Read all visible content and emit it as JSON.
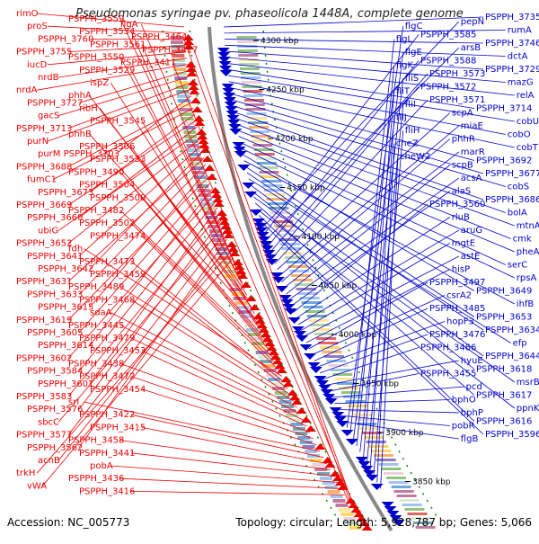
{
  "title": "Pseudomonas syringae pv. phaseolicola 1448A, complete genome",
  "accession": "Accession: NC_005773",
  "topology": "Topology: circular; Length: 5,928,787 bp; Genes: 5,066",
  "colors": {
    "forward": "#ee0000",
    "reverse": "#0000cc",
    "backbone": "#888888",
    "tick": "#008800"
  },
  "scale_labels": [
    "4300 kbp",
    "4250 kbp",
    "4200 kbp",
    "4150 kbp",
    "4100 kbp",
    "4050 kbp",
    "4000 kbp",
    "3950 kbp",
    "3900 kbp",
    "3850 kbp"
  ],
  "left_labels": [
    "rimO",
    "proS",
    "PSPPH_3760",
    "PSPPH_3755",
    "iucD",
    "nrdB",
    "nrdA",
    "PSPPH_3727",
    "gacS",
    "PSPPH_3713",
    "purN",
    "purM PSPPH_3703",
    "PSPPH_3688",
    "fumC1",
    "PSPPH_3673",
    "PSPPH_3669",
    "PSPPH_3660",
    "ubiG",
    "PSPPH_3652",
    "PSPPH_3641",
    "PSPPH_3642",
    "PSPPH_3631",
    "PSPPH_3633",
    "PSPPH_3615",
    "PSPPH_3619",
    "PSPPH_3605",
    "PSPPH_3614",
    "PSPPH_3602",
    "PSPPH_3584",
    "PSPPH_3601",
    "PSPPH_3583",
    "PSPPH_3576",
    "sbcC",
    "PSPPH_3577",
    "PSPPH_3562",
    "acnB",
    "trkH",
    "vWA",
    "PSPPH_3559",
    "PSPPH_3534",
    "PSPPH_3561",
    "PSPPH_3550",
    "PSPPH_3529",
    "ispZ",
    "phhA",
    "ribH",
    "PSPPH_3545",
    "phhB",
    "PSPPH_3506",
    "PSPPH_3533",
    "PSPPH_3490",
    "PSPPH_3504",
    "PSPPH_3500",
    "PSPPH_3482",
    "PSPPH_3502",
    "PSPPH_3474",
    "fdh",
    "PSPPH_3473",
    "PSPPH_3459",
    "PSPPH_3489",
    "PSPPH_3468",
    "sdaA",
    "PSPPH_3445",
    "PSPPH_3479",
    "PSPPH_3453",
    "PSPPH_3438",
    "PSPPH_3472",
    "PSPPH_3454",
    "srl",
    "PSPPH_3422",
    "PSPPH_3415",
    "PSPPH_3458",
    "PSPPH_3441",
    "pobA",
    "PSPPH_3436",
    "PSPPH_3416",
    "flgA",
    "PSPPH_3464",
    "PSPPH_3417",
    "PSPPH_3411"
  ],
  "right_labels": [
    "PSPPH_3735",
    "rumA",
    "PSPPH_3746",
    "dctA",
    "PSPPH_3729",
    "mazG",
    "relA",
    "PSPPH_3714",
    "cobU",
    "cobO",
    "cobT",
    "PSPPH_3692",
    "PSPPH_3677",
    "cobS",
    "PSPPH_3686",
    "bolA",
    "mtnA",
    "cmk",
    "pheA",
    "serC",
    "rpsA",
    "PSPPH_3649",
    "ihfB",
    "PSPPH_3653",
    "PSPPH_3634",
    "efp",
    "PSPPH_3644",
    "PSPPH_3618",
    "msrB",
    "PSPPH_3617",
    "ppnK",
    "PSPPH_3616",
    "PSPPH_3596",
    "pepN",
    "PSPPH_3585",
    "arsB",
    "PSPPH_3588",
    "PSPPH_3573",
    "PSPPH_3572",
    "PSPPH_3571",
    "scpA",
    "miaE",
    "phhR",
    "marR",
    "scpB",
    "acsA",
    "alaS",
    "PSPPH_3560",
    "rluB",
    "aruG",
    "mgtE",
    "astE",
    "hisP",
    "PSPPH_3497",
    "csrA2",
    "PSPPH_3485",
    "hopF3",
    "PSPPH_3476",
    "PSPPH_3466",
    "hyuE",
    "PSPPH_3455",
    "pcd",
    "bphO",
    "bphP",
    "pobR",
    "flgB",
    "flgC",
    "flgL",
    "flgE",
    "flgK",
    "fliS",
    "fliT",
    "fliI",
    "fliJ",
    "fliH",
    "cheZ",
    "cheW2"
  ]
}
